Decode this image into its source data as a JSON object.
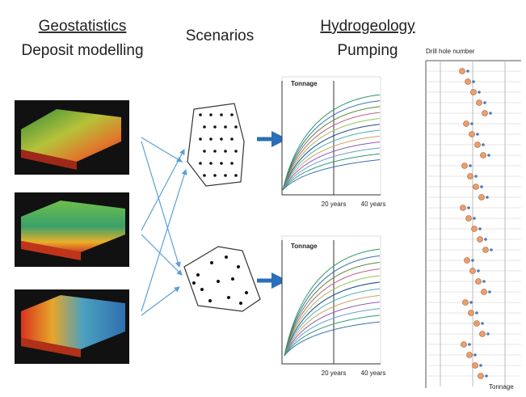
{
  "header": {
    "left": [
      "Geostatistics",
      "Deposit modelling"
    ],
    "middle": "Scenarios",
    "right": [
      "Hydrogeology",
      "Pumping"
    ]
  },
  "charts": [
    {
      "y_label": "Tonnage",
      "x_labels": [
        "20 years",
        "40 years"
      ]
    },
    {
      "y_label": "Tonnage",
      "x_labels": [
        "20 years",
        "40 years"
      ]
    }
  ],
  "side_panel": {
    "title": "Drill hole number",
    "x_label": "Tonnage"
  }
}
